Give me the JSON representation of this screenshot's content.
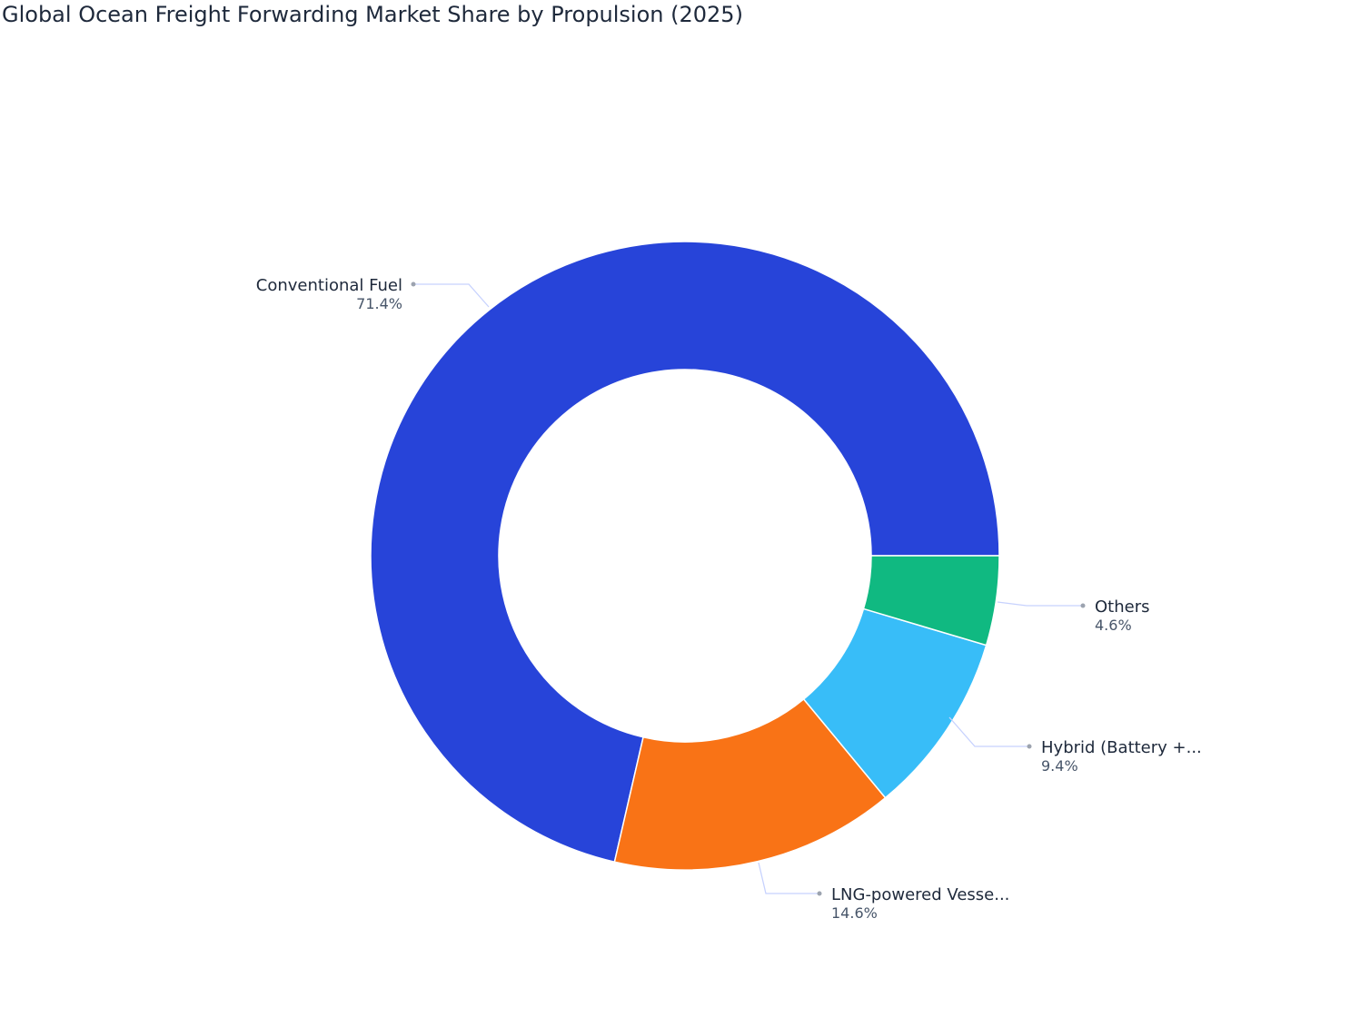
{
  "chart_data": {
    "type": "pie",
    "hole": true,
    "title": "Global Ocean Freight Forwarding Market Share by Propulsion (2025)",
    "slices": [
      {
        "label": "Conventional Fuel",
        "display_label": "Conventional Fuel",
        "value": 71.4,
        "value_label": "71.4%",
        "color": "#2744d9"
      },
      {
        "label": "LNG-powered Vessels",
        "display_label": "LNG-powered Vesse...",
        "value": 14.6,
        "value_label": "14.6%",
        "color": "#f97316"
      },
      {
        "label": "Hybrid (Battery +...",
        "display_label": "Hybrid (Battery +...",
        "value": 9.4,
        "value_label": "9.4%",
        "color": "#38bdf8"
      },
      {
        "label": "Others",
        "display_label": "Others",
        "value": 4.6,
        "value_label": "4.6%",
        "color": "#10b981"
      }
    ],
    "legend": "none",
    "leader_line_color": "#c7d2fe"
  }
}
